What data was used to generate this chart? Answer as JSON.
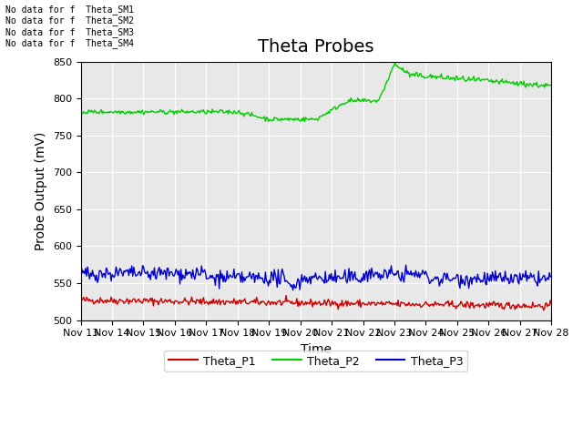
{
  "title": "Theta Probes",
  "xlabel": "Time",
  "ylabel": "Probe Output (mV)",
  "ylim": [
    500,
    850
  ],
  "yticks": [
    500,
    550,
    600,
    650,
    700,
    750,
    800,
    850
  ],
  "x_labels": [
    "Nov 13",
    "Nov 14",
    "Nov 15",
    "Nov 16",
    "Nov 17",
    "Nov 18",
    "Nov 19",
    "Nov 20",
    "Nov 21",
    "Nov 22",
    "Nov 23",
    "Nov 24",
    "Nov 25",
    "Nov 26",
    "Nov 27",
    "Nov 28"
  ],
  "no_data_labels": [
    "No data for f  Theta_SM1",
    "No data for f  Theta_SM2",
    "No data for f  Theta_SM3",
    "No data for f  Theta_SM4"
  ],
  "color_P1": "#cc0000",
  "color_P2": "#00cc00",
  "color_P3": "#0000cc",
  "bg_color": "#e8e8e8",
  "legend_labels": [
    "Theta_P1",
    "Theta_P2",
    "Theta_P3"
  ],
  "title_fontsize": 14,
  "axis_label_fontsize": 10,
  "tick_fontsize": 8
}
